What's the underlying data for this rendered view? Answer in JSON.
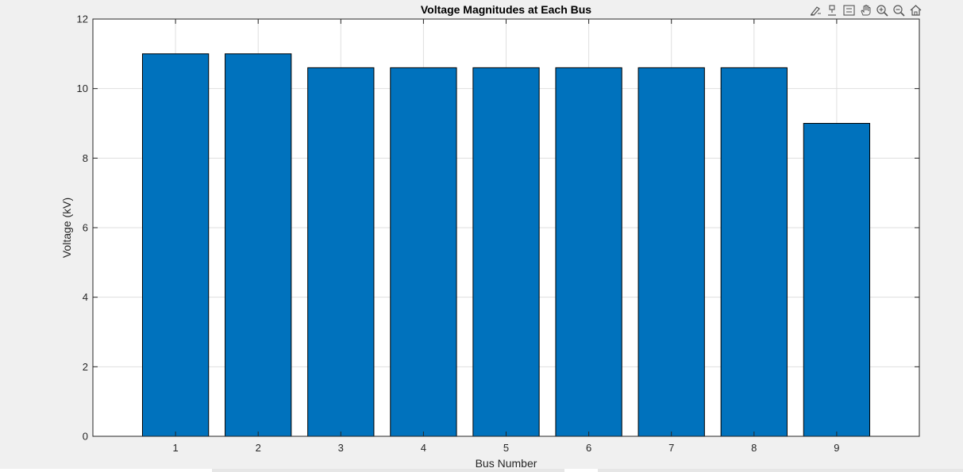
{
  "colors": {
    "background": "#f0f0f0",
    "plot_background": "#ffffff",
    "bar_fill": "#0072bd",
    "bar_edge": "#000000",
    "grid": "#dfdfdf",
    "axis": "#262626"
  },
  "toolbar": {
    "icons": [
      "brush-icon",
      "data-tips-icon",
      "legend-icon",
      "pan-icon",
      "zoom-in-icon",
      "zoom-out-icon",
      "home-icon"
    ]
  },
  "chart_data": {
    "type": "bar",
    "title": "Voltage Magnitudes at Each Bus",
    "xlabel": "Bus Number",
    "ylabel": "Voltage (kV)",
    "categories": [
      "1",
      "2",
      "3",
      "4",
      "5",
      "6",
      "7",
      "8",
      "9"
    ],
    "values": [
      11.0,
      11.0,
      10.6,
      10.6,
      10.6,
      10.6,
      10.6,
      10.6,
      9.0
    ],
    "xlim": [
      0,
      10
    ],
    "ylim": [
      0,
      12
    ],
    "yticks": [
      "0",
      "2",
      "4",
      "6",
      "8",
      "10",
      "12"
    ],
    "grid": true,
    "legend": "none"
  }
}
